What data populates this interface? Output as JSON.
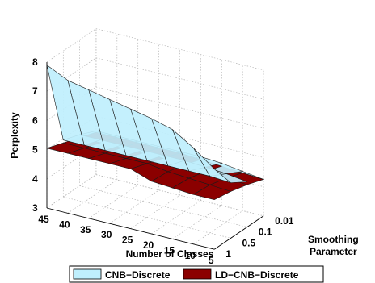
{
  "chart_data": {
    "type": "surface3d",
    "zlabel": "Perplexity",
    "xlabel": "Number of Classes",
    "ylabel_line1": "Smoothing",
    "ylabel_line2": "Parameter",
    "zlim": [
      3,
      8
    ],
    "z_ticks": [
      "3",
      "4",
      "5",
      "6",
      "7",
      "8"
    ],
    "x_ticks": [
      "45",
      "40",
      "35",
      "30",
      "25",
      "20",
      "15",
      "10",
      "5"
    ],
    "y_ticks": [
      "0.01",
      "0.1",
      "0.5",
      "1"
    ],
    "num_classes": [
      45,
      40,
      35,
      30,
      25,
      20,
      15,
      10,
      5
    ],
    "smoothing": [
      0.01,
      0.1,
      0.5,
      1
    ],
    "grid": true,
    "legend_position": "bottom",
    "series": [
      {
        "name": "CNB−Discrete",
        "color": "#bfeffd",
        "edge": "#1a1a1a",
        "z": [
          [
            7.9,
            7.55,
            7.4,
            7.25,
            7.1,
            6.95,
            6.75,
            6.3,
            5.75
          ],
          [
            4.95,
            4.95,
            4.95,
            4.95,
            4.95,
            4.95,
            4.95,
            4.95,
            4.9
          ],
          [
            4.75,
            4.75,
            4.75,
            4.75,
            4.75,
            4.75,
            4.7,
            4.65,
            4.55
          ],
          [
            4.5,
            4.5,
            4.5,
            4.5,
            4.5,
            4.5,
            4.45,
            4.35,
            4.25
          ]
        ]
      },
      {
        "name": "LD−CNB−Discrete",
        "color": "#8b0000",
        "edge": "#1a1a1a",
        "z": [
          [
            5.05,
            5.05,
            5.05,
            5.05,
            5.05,
            4.8,
            4.75,
            4.7,
            4.7
          ],
          [
            4.85,
            4.85,
            4.85,
            4.85,
            4.85,
            4.75,
            4.7,
            4.65,
            4.6
          ],
          [
            4.65,
            4.65,
            4.65,
            4.65,
            4.65,
            4.6,
            4.55,
            4.5,
            4.45
          ],
          [
            4.45,
            4.45,
            4.45,
            4.45,
            4.45,
            4.4,
            4.35,
            4.3,
            4.25
          ]
        ]
      }
    ]
  }
}
